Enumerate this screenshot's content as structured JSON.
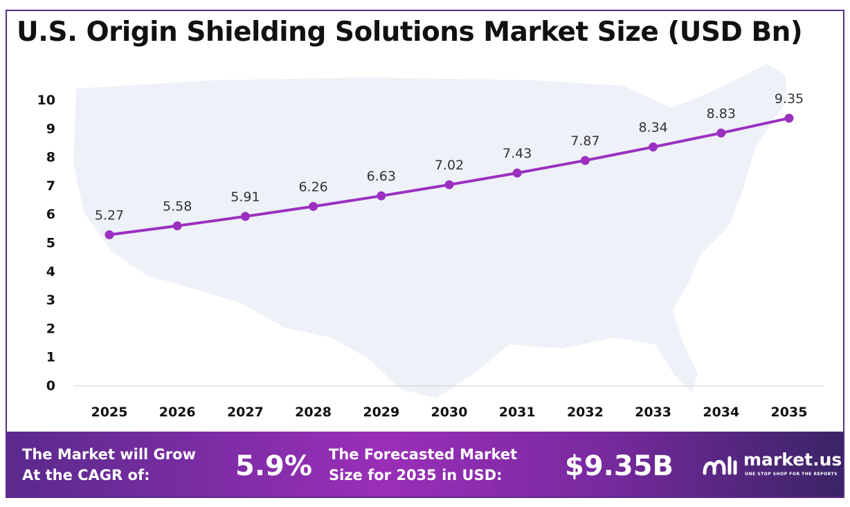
{
  "title": "U.S. Origin Shielding Solutions Market Size (USD Bn)",
  "chart_data": {
    "type": "line",
    "title": "U.S. Origin Shielding Solutions Market Size (USD Bn)",
    "x": [
      "2025",
      "2026",
      "2027",
      "2028",
      "2029",
      "2030",
      "2031",
      "2032",
      "2033",
      "2034",
      "2035"
    ],
    "values": [
      5.27,
      5.58,
      5.91,
      6.26,
      6.63,
      7.02,
      7.43,
      7.87,
      8.34,
      8.83,
      9.35
    ],
    "data_labels": [
      "5.27",
      "5.58",
      "5.91",
      "6.26",
      "6.63",
      "7.02",
      "7.43",
      "7.87",
      "8.34",
      "8.83",
      "9.35"
    ],
    "yticks": [
      "0",
      "1",
      "2",
      "3",
      "4",
      "5",
      "6",
      "7",
      "8",
      "9",
      "10"
    ],
    "ylim": [
      0,
      10
    ],
    "xlabel": "",
    "ylabel": "",
    "grid": false,
    "line_color": "#9b30c0",
    "background_map": "United States map silhouette"
  },
  "footer": {
    "cagr_label_line1": "The Market will Grow",
    "cagr_label_line2": "At the CAGR of:",
    "cagr_value": "5.9%",
    "forecast_label_line1": "The Forecasted Market",
    "forecast_label_line2": "Size for 2035 in USD:",
    "forecast_value": "$9.35B"
  },
  "logo": {
    "name": "market.us",
    "tagline": "ONE STOP SHOP FOR THE REPORTS"
  },
  "colors": {
    "line": "#9b30c0",
    "frame": "#5b2a86",
    "footer_start": "#5a2a8c",
    "footer_end": "#3a2466"
  }
}
